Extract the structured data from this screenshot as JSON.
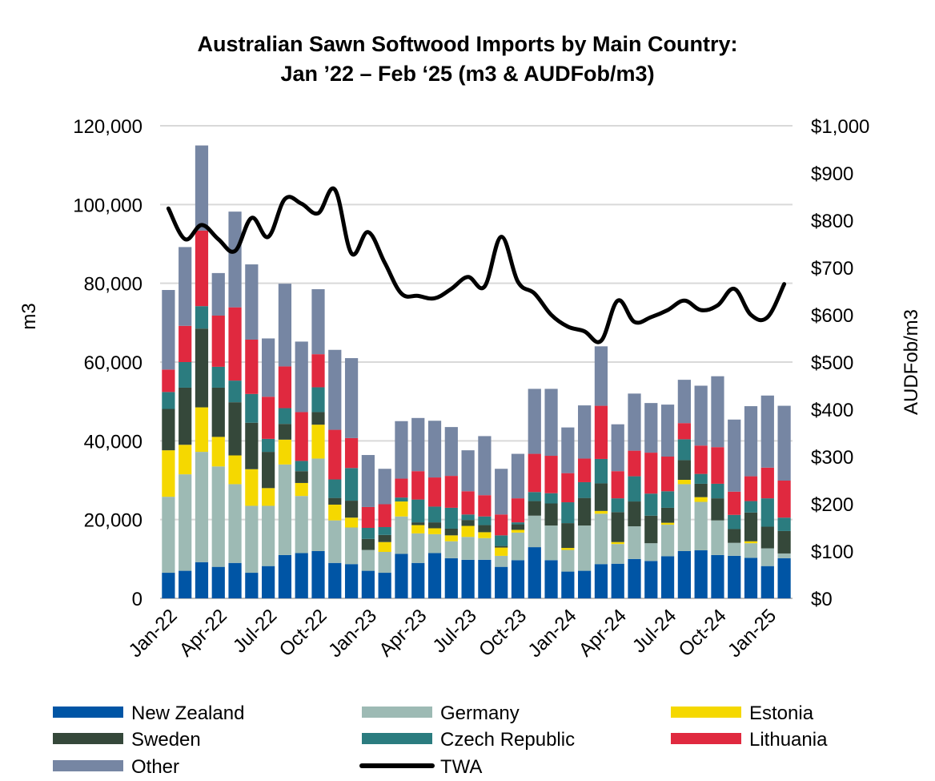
{
  "chart_data": {
    "type": "bar",
    "subtype": "stacked-bar-with-line",
    "title_line1": "Australian Sawn Softwood Imports by Main Country:",
    "title_line2": "Jan ’22 – Feb ‘25 (m3 & AUDFob/m3)",
    "ylabel": "m3",
    "y2label": "AUDFob/m3",
    "ylim": [
      0,
      120000
    ],
    "y2lim": [
      0,
      1000
    ],
    "y_ticks": [
      "0",
      "20,000",
      "40,000",
      "60,000",
      "80,000",
      "100,000",
      "120,000"
    ],
    "y2_ticks": [
      "$0",
      "$100",
      "$200",
      "$300",
      "$400",
      "$500",
      "$600",
      "$700",
      "$800",
      "$900",
      "$1,000"
    ],
    "grid": true,
    "legend_position": "bottom",
    "x_tick_labels": [
      "Jan-22",
      "Apr-22",
      "Jul-22",
      "Oct-22",
      "Jan-23",
      "Apr-23",
      "Jul-23",
      "Oct-23",
      "Jan-24",
      "Apr-24",
      "Jul-24",
      "Oct-24",
      "Jan-25"
    ],
    "categories": [
      "Jan-22",
      "Feb-22",
      "Mar-22",
      "Apr-22",
      "May-22",
      "Jun-22",
      "Jul-22",
      "Aug-22",
      "Sep-22",
      "Oct-22",
      "Nov-22",
      "Dec-22",
      "Jan-23",
      "Feb-23",
      "Mar-23",
      "Apr-23",
      "May-23",
      "Jun-23",
      "Jul-23",
      "Aug-23",
      "Sep-23",
      "Oct-23",
      "Nov-23",
      "Dec-23",
      "Jan-24",
      "Feb-24",
      "Mar-24",
      "Apr-24",
      "May-24",
      "Jun-24",
      "Jul-24",
      "Aug-24",
      "Sep-24",
      "Oct-24",
      "Nov-24",
      "Dec-24",
      "Jan-25",
      "Feb-25"
    ],
    "series": [
      {
        "name": "New Zealand",
        "color": "#0055a5",
        "values": [
          6500,
          7000,
          9200,
          8000,
          9000,
          6500,
          8200,
          11000,
          11500,
          12000,
          9000,
          8700,
          7000,
          6500,
          11300,
          9000,
          11500,
          10200,
          9800,
          9800,
          8000,
          9700,
          13000,
          9700,
          6800,
          7000,
          8700,
          8800,
          10000,
          9500,
          10700,
          12000,
          12200,
          11000,
          10800,
          10300,
          8200,
          10200
        ]
      },
      {
        "name": "Germany",
        "color": "#9dbab4",
        "values": [
          19300,
          24500,
          28000,
          25500,
          20000,
          17000,
          15300,
          23000,
          14500,
          23500,
          10800,
          9300,
          5300,
          5300,
          9500,
          7500,
          4800,
          4300,
          5800,
          5500,
          2800,
          7000,
          8000,
          8800,
          5500,
          11500,
          12800,
          5000,
          8300,
          4500,
          8000,
          17000,
          12300,
          8800,
          3300,
          3700,
          4500,
          1200
        ]
      },
      {
        "name": "Estonia",
        "color": "#f5d800",
        "values": [
          11800,
          7500,
          11300,
          7500,
          7300,
          9300,
          4500,
          6300,
          3300,
          8600,
          4000,
          2500,
          0,
          2500,
          3800,
          2100,
          1500,
          1500,
          2800,
          1500,
          2100,
          700,
          0,
          0,
          500,
          0,
          700,
          500,
          0,
          0,
          500,
          1100,
          1200,
          0,
          0,
          500,
          0,
          0
        ]
      },
      {
        "name": "Sweden",
        "color": "#35483a",
        "values": [
          10500,
          14500,
          20000,
          12500,
          13500,
          11800,
          9200,
          4000,
          3000,
          3200,
          1700,
          4300,
          2800,
          1800,
          0,
          700,
          1500,
          1700,
          1500,
          1800,
          400,
          1400,
          3700,
          5600,
          6300,
          7000,
          7000,
          7600,
          6300,
          7000,
          3800,
          5000,
          3400,
          5600,
          3500,
          7300,
          5500,
          5700
        ]
      },
      {
        "name": "Czech Republic",
        "color": "#2b7c7f",
        "values": [
          4300,
          6500,
          5700,
          5300,
          5500,
          7300,
          3300,
          4000,
          2600,
          6300,
          4700,
          8300,
          2800,
          2000,
          1000,
          5800,
          4000,
          5300,
          1400,
          2200,
          2700,
          500,
          2300,
          2600,
          5300,
          4000,
          6200,
          3500,
          6400,
          5600,
          4200,
          5300,
          2500,
          3700,
          3600,
          2900,
          7200,
          3400
        ]
      },
      {
        "name": "Lithuania",
        "color": "#e0293f",
        "values": [
          5700,
          9200,
          19200,
          13000,
          18600,
          13800,
          10700,
          10600,
          12400,
          8400,
          12600,
          7600,
          5300,
          5800,
          4800,
          7200,
          7400,
          8100,
          5900,
          5400,
          5300,
          6100,
          9700,
          9500,
          7400,
          6000,
          13500,
          6900,
          6500,
          10400,
          8800,
          4100,
          7200,
          9300,
          5900,
          6300,
          7800,
          9400
        ]
      },
      {
        "name": "Other",
        "color": "#7686a3",
        "values": [
          20200,
          20000,
          21600,
          10800,
          24300,
          19100,
          14800,
          21000,
          17900,
          16500,
          20300,
          20300,
          13200,
          9000,
          14600,
          13500,
          14400,
          12400,
          10400,
          15000,
          11600,
          11300,
          16500,
          17000,
          11600,
          13500,
          15100,
          11900,
          14500,
          12600,
          13200,
          11000,
          15200,
          18000,
          18300,
          17800,
          18300,
          19000
        ]
      },
      {
        "name": "TWA",
        "color": "#000000",
        "values": [
          825,
          760,
          790,
          760,
          735,
          805,
          765,
          845,
          835,
          815,
          865,
          730,
          775,
          710,
          645,
          640,
          635,
          655,
          680,
          660,
          765,
          670,
          645,
          600,
          575,
          565,
          545,
          630,
          585,
          595,
          610,
          630,
          610,
          620,
          655,
          600,
          595,
          665
        ]
      }
    ]
  }
}
